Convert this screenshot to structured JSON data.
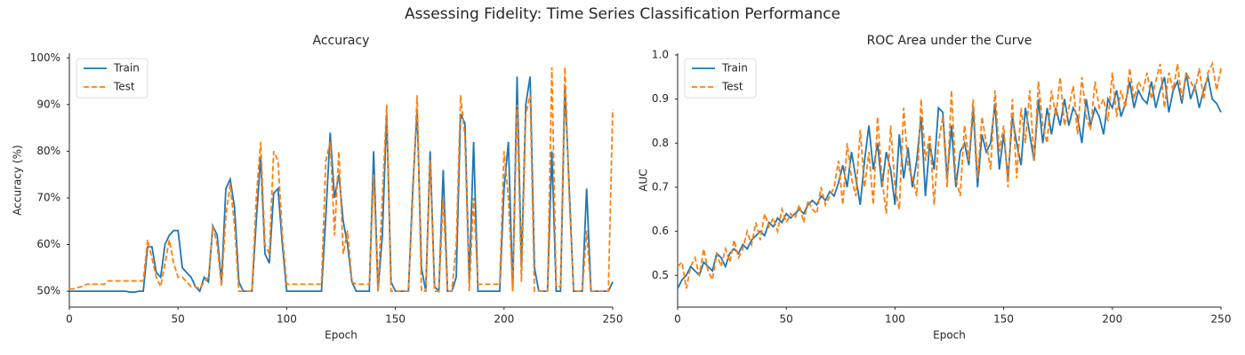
{
  "title": "Assessing Fidelity: Time Series Classification Performance",
  "chart_data": [
    {
      "type": "line",
      "title": "Accuracy",
      "xlabel": "Epoch",
      "ylabel": "Accuracy (%)",
      "xlim": [
        0,
        250
      ],
      "xticks": [
        0,
        50,
        100,
        150,
        200,
        250
      ],
      "ylim": [
        46.6,
        101
      ],
      "yticks": [
        {
          "value": 50,
          "label": "50%"
        },
        {
          "value": 60,
          "label": "60%"
        },
        {
          "value": 70,
          "label": "70%"
        },
        {
          "value": 80,
          "label": "80%"
        },
        {
          "value": 90,
          "label": "90%"
        },
        {
          "value": 100,
          "label": "100%"
        }
      ],
      "legend": "upper left",
      "x": [
        0,
        2,
        4,
        6,
        8,
        10,
        12,
        14,
        16,
        18,
        20,
        22,
        24,
        26,
        28,
        30,
        32,
        34,
        36,
        38,
        40,
        42,
        44,
        46,
        48,
        50,
        52,
        54,
        56,
        58,
        60,
        62,
        64,
        66,
        68,
        70,
        72,
        74,
        76,
        78,
        80,
        82,
        84,
        86,
        88,
        90,
        92,
        94,
        96,
        98,
        100,
        102,
        104,
        106,
        108,
        110,
        112,
        114,
        116,
        118,
        120,
        122,
        124,
        126,
        128,
        130,
        132,
        134,
        136,
        138,
        140,
        142,
        144,
        146,
        148,
        150,
        152,
        154,
        156,
        158,
        160,
        162,
        164,
        166,
        168,
        170,
        172,
        174,
        176,
        178,
        180,
        182,
        184,
        186,
        188,
        190,
        192,
        194,
        196,
        198,
        200,
        202,
        204,
        206,
        208,
        210,
        212,
        214,
        216,
        218,
        220,
        222,
        224,
        226,
        228,
        230,
        232,
        234,
        236,
        238,
        240,
        242,
        244,
        246,
        248,
        250
      ],
      "series": [
        {
          "name": "Train",
          "color": "#1f77b4",
          "style": "solid",
          "values": [
            50,
            50,
            50,
            50,
            50,
            50,
            50,
            50,
            50,
            50,
            50,
            50,
            50,
            50,
            49.8,
            49.8,
            50,
            50,
            59.5,
            59.5,
            54,
            53,
            60,
            62,
            63,
            63,
            55,
            54,
            53,
            51,
            50,
            53,
            52,
            64,
            62,
            52,
            72,
            74,
            68,
            52,
            50,
            50,
            50,
            65,
            79,
            58,
            56,
            71,
            72,
            60,
            50,
            50,
            50,
            50,
            50,
            50,
            50,
            50,
            50,
            66,
            84,
            70,
            75,
            65,
            60,
            52,
            50,
            50,
            50,
            50,
            80,
            50,
            62,
            88,
            52,
            50,
            50,
            50,
            50,
            72,
            89,
            55,
            50,
            80,
            51,
            50,
            76,
            50,
            50,
            53,
            88,
            86,
            52,
            82,
            50,
            50,
            50,
            50,
            50,
            50,
            72,
            82,
            50,
            96,
            55,
            90,
            96,
            55,
            50,
            50,
            50,
            80,
            50,
            50,
            94,
            72,
            50,
            50,
            50,
            72,
            50,
            50,
            50,
            50,
            50,
            52
          ]
        },
        {
          "name": "Test",
          "color": "#ff7f0e",
          "style": "dashed",
          "values": [
            50.5,
            50.5,
            50.8,
            51,
            51.5,
            51.5,
            51.5,
            51.5,
            51.5,
            52.2,
            52.2,
            52.2,
            52.2,
            52.2,
            52.2,
            52.2,
            52.2,
            52.2,
            61,
            57,
            53,
            51,
            56,
            61,
            56,
            53,
            53,
            52,
            51,
            51,
            50.5,
            52,
            53,
            64,
            60,
            51,
            66,
            73,
            64,
            50,
            50,
            50,
            50,
            70,
            82,
            60,
            58,
            80,
            78,
            62,
            51.5,
            51.5,
            51.5,
            51.5,
            51.5,
            51.5,
            51.5,
            51.5,
            51.5,
            78,
            82,
            62,
            80,
            58,
            63,
            52,
            51.5,
            51.5,
            51.5,
            51.5,
            75,
            50,
            70,
            90,
            50,
            50,
            50,
            50,
            50,
            70,
            92,
            50,
            50,
            78,
            50,
            50,
            70,
            50,
            50,
            60,
            92,
            83,
            50,
            70,
            51.5,
            51.5,
            51.5,
            51.5,
            51.5,
            51.5,
            80,
            70,
            50,
            90,
            52,
            88,
            92,
            50,
            50,
            50,
            50,
            98,
            51,
            51,
            98,
            70,
            50,
            50,
            50,
            63,
            50,
            50,
            50,
            50,
            50,
            89
          ]
        }
      ]
    },
    {
      "type": "line",
      "title": "ROC Area under the Curve",
      "xlabel": "Epoch",
      "ylabel": "AUC",
      "xlim": [
        0,
        250
      ],
      "xticks": [
        0,
        50,
        100,
        150,
        200,
        250
      ],
      "ylim": [
        0.428,
        1.004
      ],
      "yticks": [
        0.5,
        0.6,
        0.7,
        0.8,
        0.9,
        {
          "value": 1,
          "label": "1.0"
        }
      ],
      "legend": "upper left",
      "x": [
        0,
        2,
        4,
        6,
        8,
        10,
        12,
        14,
        16,
        18,
        20,
        22,
        24,
        26,
        28,
        30,
        32,
        34,
        36,
        38,
        40,
        42,
        44,
        46,
        48,
        50,
        52,
        54,
        56,
        58,
        60,
        62,
        64,
        66,
        68,
        70,
        72,
        74,
        76,
        78,
        80,
        82,
        84,
        86,
        88,
        90,
        92,
        94,
        96,
        98,
        100,
        102,
        104,
        106,
        108,
        110,
        112,
        114,
        116,
        118,
        120,
        122,
        124,
        126,
        128,
        130,
        132,
        134,
        136,
        138,
        140,
        142,
        144,
        146,
        148,
        150,
        152,
        154,
        156,
        158,
        160,
        162,
        164,
        166,
        168,
        170,
        172,
        174,
        176,
        178,
        180,
        182,
        184,
        186,
        188,
        190,
        192,
        194,
        196,
        198,
        200,
        202,
        204,
        206,
        208,
        210,
        212,
        214,
        216,
        218,
        220,
        222,
        224,
        226,
        228,
        230,
        232,
        234,
        236,
        238,
        240,
        242,
        244,
        246,
        248,
        250
      ],
      "series": [
        {
          "name": "Train",
          "color": "#1f77b4",
          "style": "solid",
          "values": [
            0.47,
            0.49,
            0.5,
            0.52,
            0.51,
            0.5,
            0.53,
            0.52,
            0.51,
            0.55,
            0.54,
            0.52,
            0.55,
            0.56,
            0.55,
            0.57,
            0.56,
            0.58,
            0.59,
            0.6,
            0.59,
            0.62,
            0.61,
            0.63,
            0.62,
            0.64,
            0.63,
            0.64,
            0.65,
            0.64,
            0.66,
            0.67,
            0.66,
            0.68,
            0.67,
            0.69,
            0.68,
            0.71,
            0.75,
            0.7,
            0.78,
            0.72,
            0.66,
            0.76,
            0.84,
            0.74,
            0.8,
            0.7,
            0.78,
            0.74,
            0.66,
            0.82,
            0.72,
            0.79,
            0.7,
            0.76,
            0.86,
            0.68,
            0.8,
            0.74,
            0.88,
            0.87,
            0.72,
            0.84,
            0.7,
            0.78,
            0.8,
            0.75,
            0.88,
            0.7,
            0.82,
            0.78,
            0.8,
            0.89,
            0.74,
            0.82,
            0.72,
            0.86,
            0.8,
            0.75,
            0.88,
            0.82,
            0.76,
            0.9,
            0.8,
            0.88,
            0.82,
            0.88,
            0.84,
            0.9,
            0.84,
            0.88,
            0.86,
            0.8,
            0.9,
            0.84,
            0.88,
            0.86,
            0.82,
            0.9,
            0.88,
            0.92,
            0.86,
            0.89,
            0.94,
            0.88,
            0.92,
            0.9,
            0.89,
            0.94,
            0.88,
            0.92,
            0.95,
            0.87,
            0.92,
            0.94,
            0.89,
            0.96,
            0.9,
            0.93,
            0.88,
            0.92,
            0.95,
            0.9,
            0.89,
            0.87
          ]
        },
        {
          "name": "Test",
          "color": "#ff7f0e",
          "style": "dashed",
          "values": [
            0.52,
            0.53,
            0.47,
            0.52,
            0.54,
            0.5,
            0.56,
            0.51,
            0.49,
            0.55,
            0.52,
            0.56,
            0.53,
            0.58,
            0.54,
            0.56,
            0.6,
            0.57,
            0.62,
            0.58,
            0.64,
            0.61,
            0.63,
            0.6,
            0.65,
            0.62,
            0.64,
            0.63,
            0.66,
            0.62,
            0.67,
            0.65,
            0.64,
            0.7,
            0.66,
            0.68,
            0.7,
            0.76,
            0.66,
            0.8,
            0.72,
            0.68,
            0.83,
            0.7,
            0.78,
            0.66,
            0.86,
            0.72,
            0.64,
            0.84,
            0.7,
            0.65,
            0.88,
            0.75,
            0.72,
            0.68,
            0.9,
            0.76,
            0.82,
            0.66,
            0.8,
            0.86,
            0.7,
            0.92,
            0.72,
            0.68,
            0.84,
            0.76,
            0.9,
            0.72,
            0.86,
            0.8,
            0.74,
            0.92,
            0.78,
            0.84,
            0.7,
            0.9,
            0.72,
            0.88,
            0.8,
            0.92,
            0.76,
            0.94,
            0.84,
            0.8,
            0.92,
            0.86,
            0.95,
            0.84,
            0.88,
            0.93,
            0.82,
            0.95,
            0.86,
            0.83,
            0.94,
            0.88,
            0.9,
            0.85,
            0.96,
            0.86,
            0.92,
            0.88,
            0.97,
            0.9,
            0.94,
            0.92,
            0.96,
            0.9,
            0.94,
            0.98,
            0.88,
            0.96,
            0.92,
            0.98,
            0.9,
            0.96,
            0.94,
            0.92,
            0.97,
            0.9,
            0.96,
            0.98,
            0.92,
            0.97
          ]
        }
      ]
    }
  ]
}
